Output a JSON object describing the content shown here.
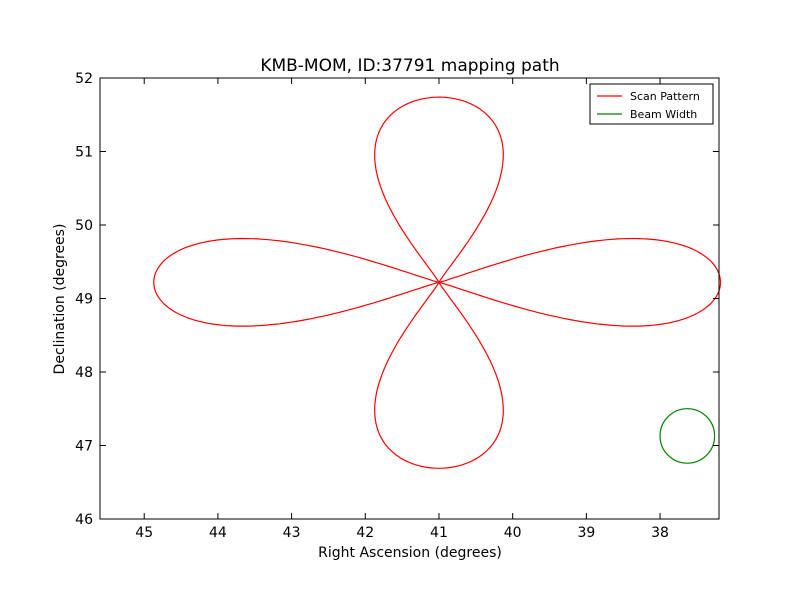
{
  "chart_data": {
    "type": "line",
    "title": "KMB-MOM, ID:37791 mapping path",
    "xlabel": "Right Ascension (degrees)",
    "ylabel": "Declination (degrees)",
    "xlim": [
      45.6,
      37.2
    ],
    "ylim": [
      46,
      52
    ],
    "x_inverted": true,
    "xticks": [
      45,
      44,
      43,
      42,
      41,
      40,
      39,
      38
    ],
    "yticks": [
      46,
      47,
      48,
      49,
      50,
      51,
      52
    ],
    "grid": false,
    "legend_position": "top-right",
    "series": [
      {
        "name": "Scan Pattern",
        "color": "#ff0000",
        "path_type": "four-lobe-rose",
        "center": [
          41.0,
          49.22
        ],
        "lobes": [
          {
            "direction": "north",
            "extent": [
              40.0,
              42.05,
              49.22,
              51.74
            ]
          },
          {
            "direction": "south",
            "extent": [
              40.0,
              42.05,
              46.69,
              49.22
            ]
          },
          {
            "direction": "east",
            "extent": [
              44.87,
              41.0,
              48.52,
              49.92
            ]
          },
          {
            "direction": "west",
            "extent": [
              41.0,
              37.18,
              48.52,
              49.92
            ]
          }
        ]
      },
      {
        "name": "Beam Width",
        "color": "#008000",
        "path_type": "circle",
        "center": [
          37.63,
          47.13
        ],
        "radius_deg": 0.37
      }
    ]
  }
}
